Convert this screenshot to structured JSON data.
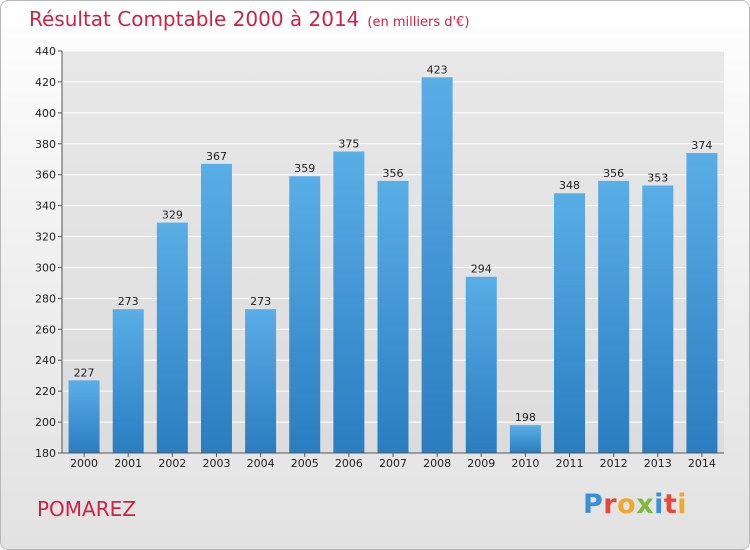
{
  "header": {
    "title": "Résultat Comptable 2000 à 2014",
    "subtitle": "(en milliers d'€)"
  },
  "footer": {
    "town": "POMAREZ",
    "logo": "Proxiti"
  },
  "colors": {
    "title": "#cc2244",
    "bar_light": "#5aaee6",
    "bar_dark": "#2a7dc0",
    "logo_letters": [
      "#3b8fd4",
      "#e8453c",
      "#f2a72c",
      "#7fba3f",
      "#3b8fd4",
      "#e8453c",
      "#f2a72c"
    ]
  },
  "chart_data": {
    "type": "bar",
    "title": "Résultat Comptable 2000 à 2014",
    "subtitle": "(en milliers d'€)",
    "categories": [
      "2000",
      "2001",
      "2002",
      "2003",
      "2004",
      "2005",
      "2006",
      "2007",
      "2008",
      "2009",
      "2010",
      "2011",
      "2012",
      "2013",
      "2014"
    ],
    "values": [
      227,
      273,
      329,
      367,
      273,
      359,
      375,
      356,
      423,
      294,
      198,
      348,
      356,
      353,
      374
    ],
    "ylim": [
      180,
      440
    ],
    "yticks": [
      180,
      200,
      220,
      240,
      260,
      280,
      300,
      320,
      340,
      360,
      380,
      400,
      420,
      440
    ],
    "grid": true,
    "legend": "none"
  }
}
